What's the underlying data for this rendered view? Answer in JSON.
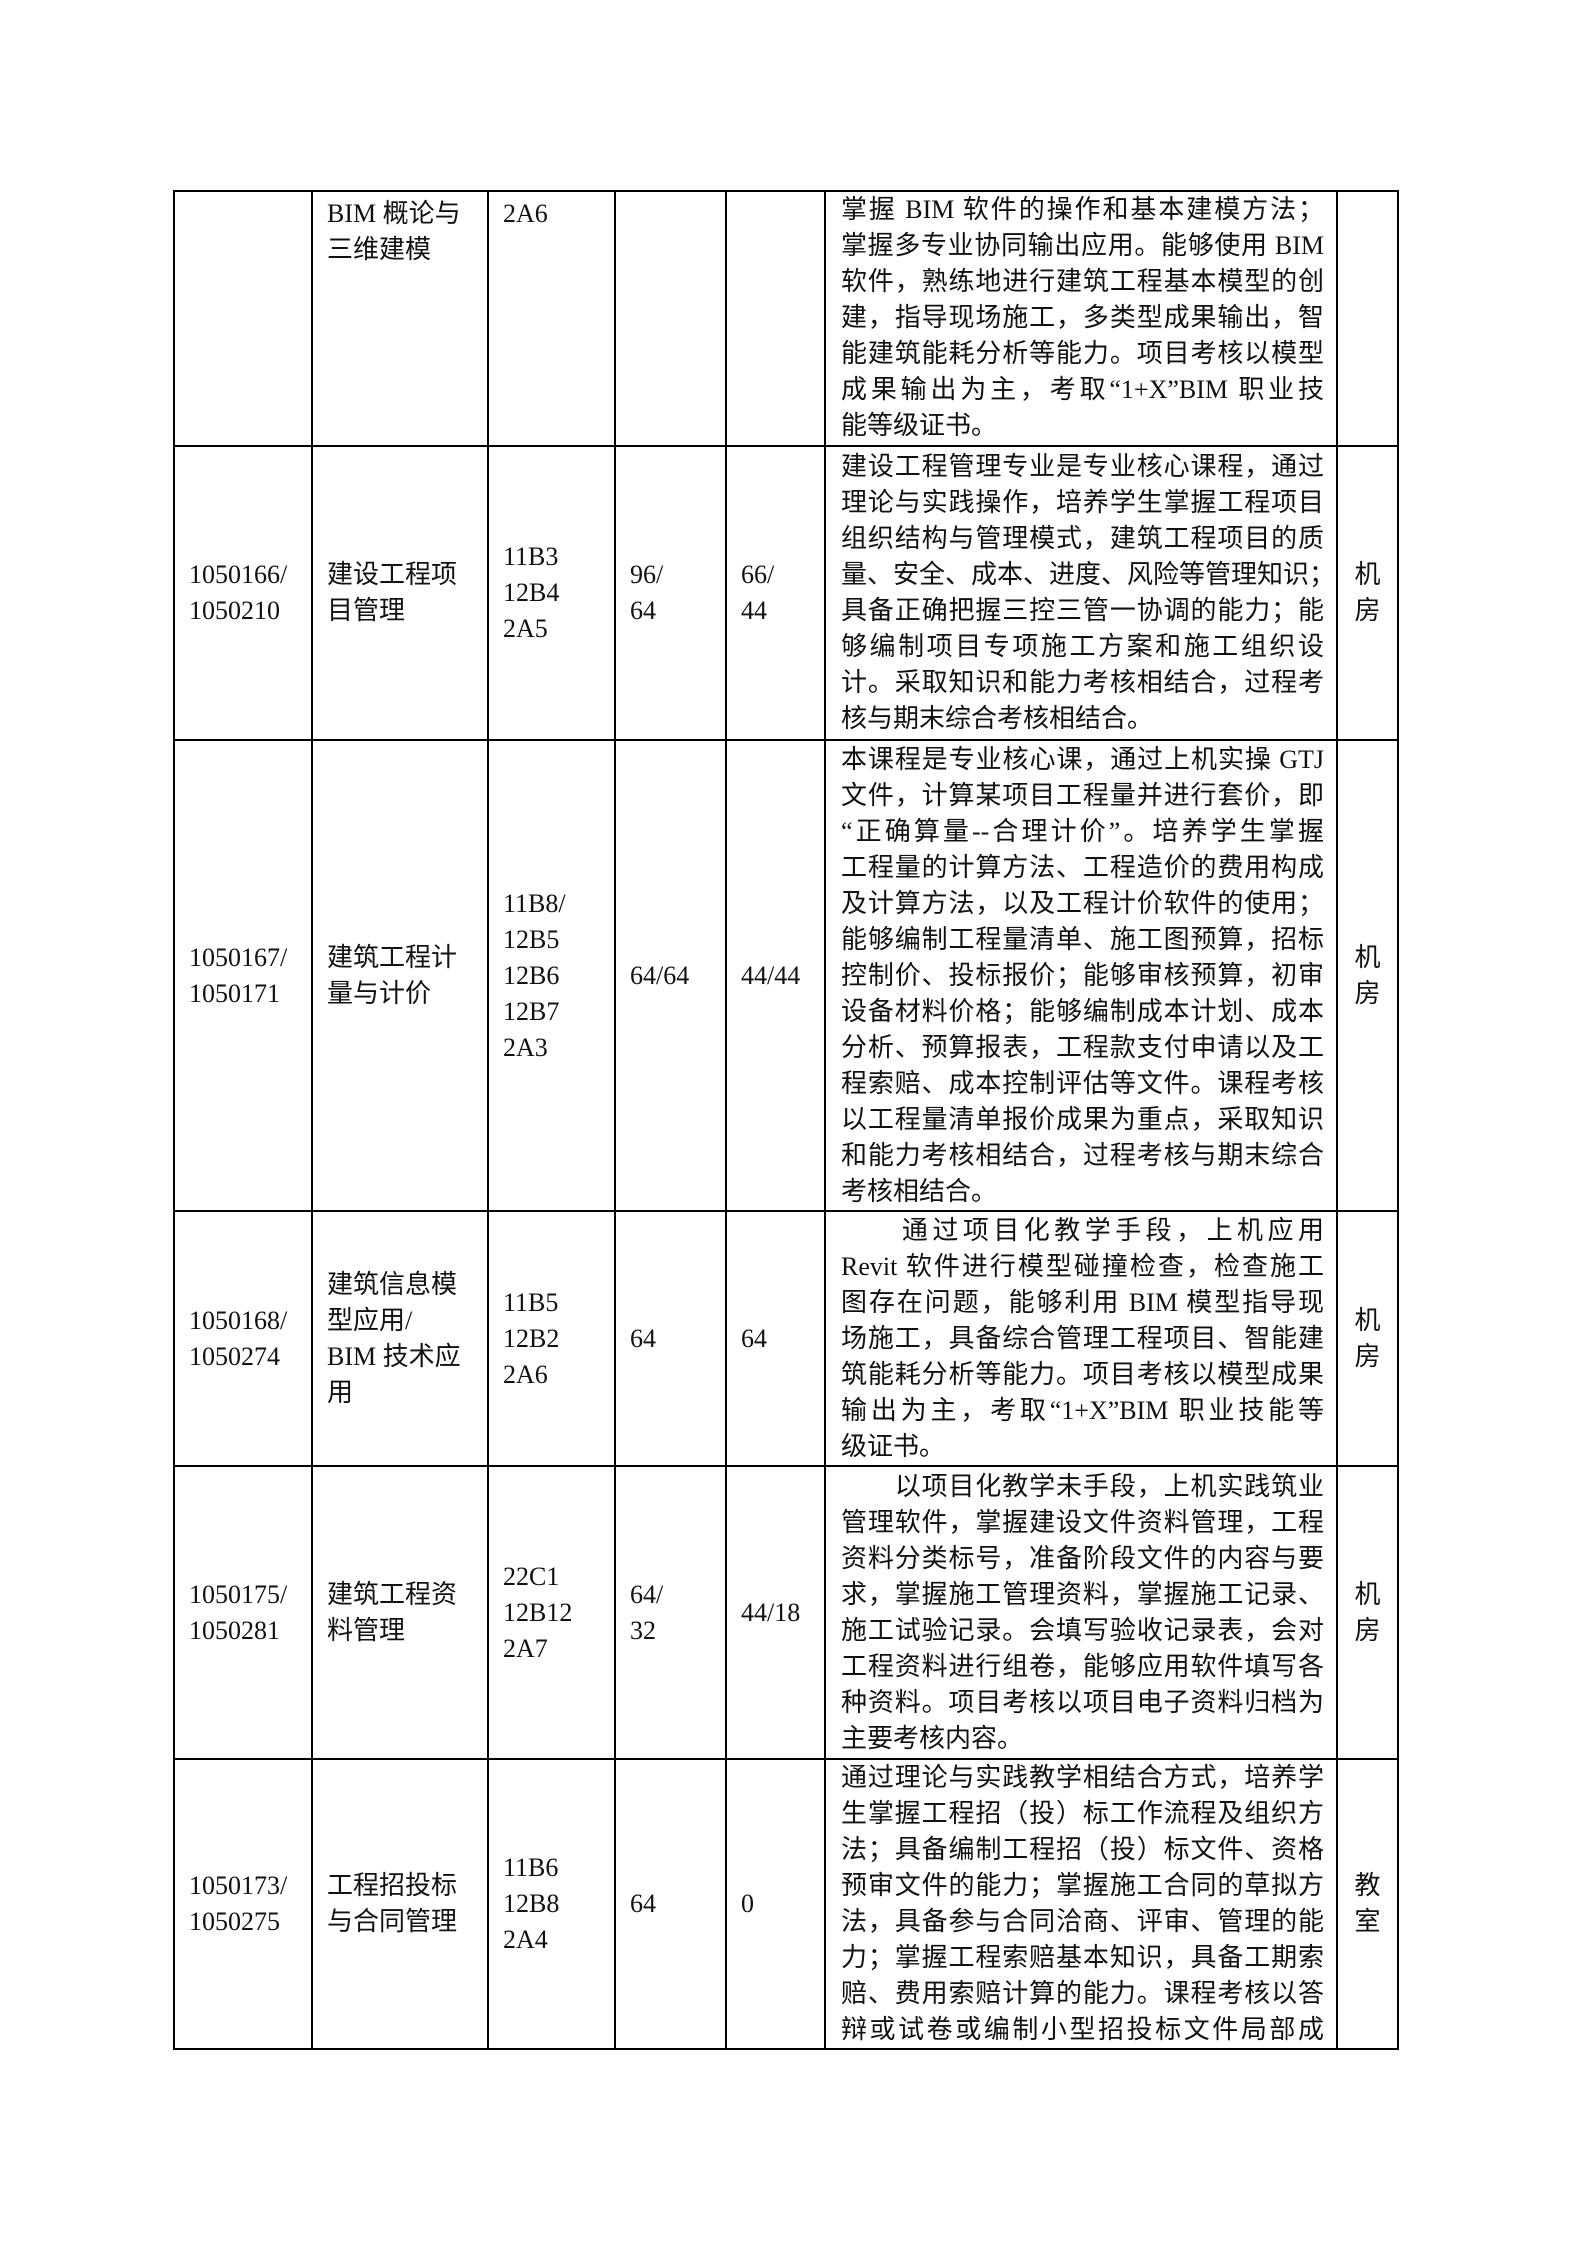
{
  "rows": [
    {
      "code": [],
      "name": [
        "BIM 概论与",
        "三维建模"
      ],
      "credits": [
        "2A6"
      ],
      "hours": [],
      "lab_hours": [],
      "description": [
        "掌握 BIM 软件的操作和基本建模方法；",
        "掌握多专业协同输出应用。能够使用 BIM",
        "软件，熟练地进行建筑工程基本模型的创",
        "建，指导现场施工，多类型成果输出，智",
        "能建筑能耗分析等能力。项目考核以模型",
        "成果输出为主，考取“1+X”BIM 职业技",
        "能等级证书。"
      ],
      "place": []
    },
    {
      "code": [
        "1050166/",
        "1050210"
      ],
      "name": [
        "建设工程项",
        "目管理"
      ],
      "credits": [
        "11B3",
        "12B4",
        "2A5"
      ],
      "hours": [
        "96/",
        "64"
      ],
      "lab_hours": [
        "66/",
        "44"
      ],
      "description": [
        "建设工程管理专业是专业核心课程，通过",
        "理论与实践操作，培养学生掌握工程项目",
        "组织结构与管理模式，建筑工程项目的质",
        "量、安全、成本、进度、风险等管理知识；",
        "具备正确把握三控三管一协调的能力；能",
        "够编制项目专项施工方案和施工组织设",
        "计。采取知识和能力考核相结合，过程考",
        "核与期末综合考核相结合。"
      ],
      "place": [
        "机",
        "房"
      ]
    },
    {
      "code": [
        "1050167/",
        "1050171"
      ],
      "name": [
        "建筑工程计",
        "量与计价"
      ],
      "credits": [
        "11B8/",
        "12B5",
        "12B6",
        "12B7",
        "2A3"
      ],
      "hours": [
        "64/64"
      ],
      "lab_hours": [
        "44/44"
      ],
      "description": [
        "本课程是专业核心课，通过上机实操 GTJ",
        "文件，计算某项目工程量并进行套价，即",
        "“正确算量--合理计价”。培养学生掌握",
        "工程量的计算方法、工程造价的费用构成",
        "及计算方法，以及工程计价软件的使用；",
        "能够编制工程量清单、施工图预算，招标",
        "控制价、投标报价；能够审核预算，初审",
        "设备材料价格；能够编制成本计划、成本",
        "分析、预算报表，工程款支付申请以及工",
        "程索赔、成本控制评估等文件。课程考核",
        "以工程量清单报价成果为重点，采取知识",
        "和能力考核相结合，过程考核与期末综合",
        "考核相结合。"
      ],
      "place": [
        "机",
        "房"
      ]
    },
    {
      "code": [
        "1050168/",
        "1050274"
      ],
      "name": [
        "建筑信息模",
        "型应用/",
        "BIM 技术应",
        "用"
      ],
      "credits": [
        "11B5",
        "12B2",
        "2A6"
      ],
      "hours": [
        "64"
      ],
      "lab_hours": [
        "64"
      ],
      "description": [
        "　　通过项目化教学手段，上机应用",
        "Revit 软件进行模型碰撞检查，检查施工",
        "图存在问题，能够利用 BIM 模型指导现",
        "场施工，具备综合管理工程项目、智能建",
        "筑能耗分析等能力。项目考核以模型成果",
        "输出为主，考取“1+X”BIM 职业技能等",
        "级证书。"
      ],
      "place": [
        "机",
        "房"
      ]
    },
    {
      "code": [
        "1050175/",
        "1050281"
      ],
      "name": [
        "建筑工程资",
        "料管理"
      ],
      "credits": [
        "22C1",
        "12B12",
        "2A7"
      ],
      "hours": [
        "64/",
        "32"
      ],
      "lab_hours": [
        "44/18"
      ],
      "description": [
        "　　以项目化教学未手段，上机实践筑业",
        "管理软件，掌握建设文件资料管理，工程",
        "资料分类标号，准备阶段文件的内容与要",
        "求，掌握施工管理资料，掌握施工记录、",
        "施工试验记录。会填写验收记录表，会对",
        "工程资料进行组卷，能够应用软件填写各",
        "种资料。项目考核以项目电子资料归档为",
        "主要考核内容。"
      ],
      "place": [
        "机",
        "房"
      ]
    },
    {
      "code": [
        "1050173/",
        "1050275"
      ],
      "name": [
        "工程招投标",
        "与合同管理"
      ],
      "credits": [
        "11B6",
        "12B8",
        "2A4"
      ],
      "hours": [
        "64"
      ],
      "lab_hours": [
        "0"
      ],
      "description": [
        "通过理论与实践教学相结合方式，培养学",
        "生掌握工程招（投）标工作流程及组织方",
        "法；具备编制工程招（投）标文件、资格",
        "预审文件的能力；掌握施工合同的草拟方",
        "法，具备参与合同洽商、评审、管理的能",
        "力；掌握工程索赔基本知识，具备工期索",
        "赔、费用索赔计算的能力。课程考核以答",
        "辩或试卷或编制小型招投标文件局部成"
      ],
      "place": [
        "教",
        "室"
      ]
    }
  ]
}
